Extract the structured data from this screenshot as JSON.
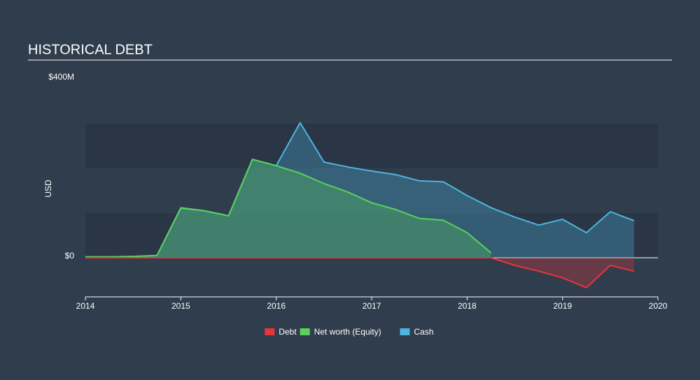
{
  "chart_data": {
    "type": "line",
    "title": "HISTORICAL DEBT",
    "y_label": "USD",
    "x": [
      2014,
      2014.25,
      2014.5,
      2014.75,
      2015,
      2015.25,
      2015.5,
      2015.75,
      2016,
      2016.25,
      2016.5,
      2016.75,
      2017,
      2017.25,
      2017.5,
      2017.75,
      2018,
      2018.25,
      2018.5,
      2018.75,
      2019,
      2019.25,
      2019.5,
      2019.75
    ],
    "series": [
      {
        "name": "Debt",
        "color": "#e8353a",
        "values": [
          0,
          0,
          0,
          0,
          0,
          0,
          0,
          0,
          0,
          0,
          0,
          0,
          0,
          0,
          0,
          0,
          0,
          0,
          -17,
          -30,
          -45,
          -67,
          -17,
          -30
        ]
      },
      {
        "name": "Net worth (Equity)",
        "color": "#58d25a",
        "values": [
          2,
          2,
          3,
          5,
          111,
          105,
          94,
          220,
          206,
          189,
          166,
          147,
          123,
          108,
          88,
          84,
          56,
          11,
          null,
          null,
          null,
          null,
          null,
          null
        ]
      },
      {
        "name": "Cash",
        "color": "#4cb5e0",
        "values": [
          2,
          2,
          3,
          5,
          112,
          105,
          94,
          220,
          206,
          302,
          214,
          203,
          194,
          186,
          172,
          170,
          139,
          112,
          91,
          73,
          86,
          56,
          103,
          83
        ]
      }
    ],
    "xlim": [
      2014,
      2020
    ],
    "xticks": [
      2014,
      2015,
      2016,
      2017,
      2018,
      2019,
      2020
    ],
    "ylim": [
      -87.5,
      400
    ],
    "yticks": [
      {
        "value": 0,
        "label": "$0"
      },
      {
        "value": 400,
        "label": "$400M"
      }
    ]
  }
}
